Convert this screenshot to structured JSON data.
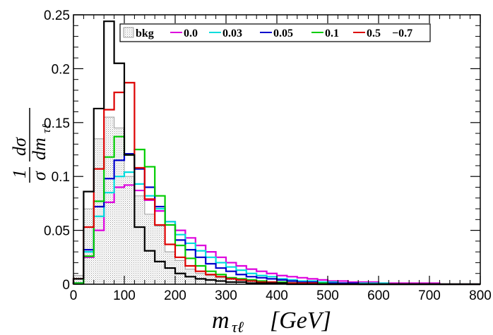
{
  "chart_data": {
    "type": "histogram",
    "xlabel": "m_{τℓ}  [GeV]",
    "xlabel_parts": {
      "main": "m",
      "sub": "τℓ",
      "units": "[GeV]"
    },
    "ylabel": "1/σ dσ/dm_{τℓ}",
    "ylabel_parts": {
      "one": "1",
      "sigma": "σ",
      "dsigma": "dσ",
      "dm": "dm",
      "sub": "τℓ"
    },
    "xlim": [
      0,
      800
    ],
    "ylim": [
      0,
      0.25
    ],
    "xticks": [
      0,
      100,
      200,
      300,
      400,
      500,
      600,
      700,
      800
    ],
    "xtick_labels": [
      "0",
      "100",
      "200",
      "300",
      "400",
      "500",
      "600",
      "700",
      "800"
    ],
    "yticks": [
      0,
      0.05,
      0.1,
      0.15,
      0.2,
      0.25
    ],
    "ytick_labels": [
      "0",
      "0.05",
      "0.1",
      "0.15",
      "0.2",
      "0.25"
    ],
    "bin_edges": [
      0,
      20,
      40,
      60,
      80,
      100,
      120,
      140,
      160,
      180,
      200,
      220,
      240,
      260,
      280,
      300,
      320,
      340,
      360,
      380,
      400,
      420,
      440,
      460,
      480,
      500,
      520,
      540,
      560,
      580,
      600,
      620,
      640,
      660,
      680,
      700,
      720,
      740,
      760,
      780,
      800
    ],
    "legend_position": "top",
    "series": [
      {
        "name": "bkg",
        "label": "bkg",
        "color": "#aaaaaa",
        "filled": true,
        "values": [
          0.008,
          0.07,
          0.135,
          0.155,
          0.145,
          0.1,
          0.082,
          0.065,
          0.054,
          0.03,
          0.022,
          0.014,
          0.01,
          0.008,
          0.006,
          0.005,
          0.004,
          0.003,
          0.003,
          0.002,
          0.002,
          0.002,
          0.001,
          0.001,
          0.001,
          0.001,
          0.001,
          0.001,
          0,
          0,
          0,
          0,
          0,
          0,
          0,
          0,
          0,
          0,
          0,
          0
        ]
      },
      {
        "name": "0.0",
        "label": "0.0",
        "color": "#dd00dd",
        "values": [
          0.001,
          0.025,
          0.05,
          0.076,
          0.09,
          0.092,
          0.087,
          0.078,
          0.068,
          0.058,
          0.05,
          0.043,
          0.036,
          0.03,
          0.025,
          0.02,
          0.017,
          0.014,
          0.012,
          0.01,
          0.008,
          0.007,
          0.006,
          0.005,
          0.004,
          0.003,
          0.003,
          0.002,
          0.002,
          0.002,
          0.001,
          0.001,
          0.001,
          0.001,
          0.001,
          0.001,
          0,
          0,
          0,
          0
        ]
      },
      {
        "name": "0.03",
        "label": "0.03",
        "color": "#00dddd",
        "values": [
          0.001,
          0.03,
          0.063,
          0.085,
          0.1,
          0.104,
          0.093,
          0.082,
          0.07,
          0.058,
          0.046,
          0.038,
          0.031,
          0.025,
          0.02,
          0.016,
          0.013,
          0.01,
          0.008,
          0.007,
          0.005,
          0.004,
          0.003,
          0.003,
          0.002,
          0.002,
          0.001,
          0.001,
          0.001,
          0.001,
          0.001,
          0,
          0,
          0,
          0,
          0,
          0,
          0,
          0,
          0
        ]
      },
      {
        "name": "0.05",
        "label": "0.05",
        "color": "#0000cc",
        "values": [
          0.001,
          0.032,
          0.072,
          0.098,
          0.115,
          0.121,
          0.107,
          0.09,
          0.072,
          0.055,
          0.041,
          0.032,
          0.025,
          0.019,
          0.015,
          0.012,
          0.009,
          0.007,
          0.006,
          0.005,
          0.004,
          0.003,
          0.002,
          0.002,
          0.001,
          0.001,
          0.001,
          0.001,
          0,
          0,
          0,
          0,
          0,
          0,
          0,
          0,
          0,
          0,
          0,
          0
        ]
      },
      {
        "name": "0.1",
        "label": "0.1",
        "color": "#00cc00",
        "values": [
          0.001,
          0.026,
          0.077,
          0.118,
          0.137,
          0.12,
          0.125,
          0.109,
          0.082,
          0.055,
          0.036,
          0.024,
          0.017,
          0.012,
          0.009,
          0.006,
          0.005,
          0.004,
          0.003,
          0.002,
          0.002,
          0.001,
          0.001,
          0.001,
          0.001,
          0,
          0,
          0,
          0,
          0,
          0,
          0,
          0,
          0,
          0,
          0,
          0,
          0,
          0,
          0
        ]
      },
      {
        "name": "0.5",
        "label": "0.5",
        "color": "#dd0000",
        "values": [
          0.005,
          0.053,
          0.107,
          0.162,
          0.178,
          0.187,
          0.108,
          0.079,
          0.055,
          0.037,
          0.025,
          0.017,
          0.012,
          0.009,
          0.007,
          0.005,
          0.004,
          0.003,
          0.002,
          0.002,
          0.001,
          0.001,
          0.001,
          0.001,
          0,
          0,
          0,
          0,
          0,
          0,
          0,
          0,
          0,
          0,
          0,
          0,
          0,
          0,
          0,
          0
        ]
      },
      {
        "name": "-0.7",
        "label": "−0.7",
        "color": "#000000",
        "values": [
          0.005,
          0.086,
          0.163,
          0.244,
          0.205,
          0.12,
          0.053,
          0.031,
          0.021,
          0.015,
          0.01,
          0.007,
          0.005,
          0.004,
          0.003,
          0.002,
          0.002,
          0.001,
          0.001,
          0.001,
          0.001,
          0,
          0,
          0,
          0,
          0,
          0,
          0,
          0,
          0,
          0,
          0,
          0,
          0,
          0,
          0,
          0,
          0,
          0,
          0
        ]
      }
    ]
  }
}
